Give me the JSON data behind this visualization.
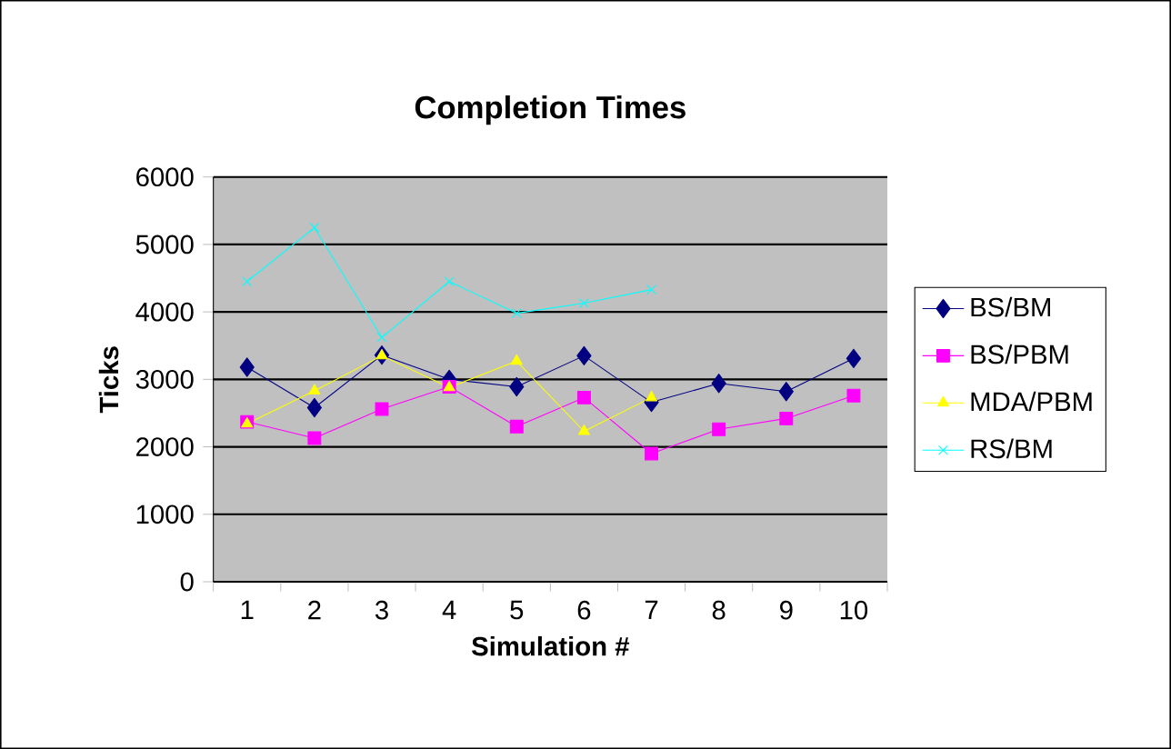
{
  "chart_data": {
    "type": "line",
    "title": "Completion Times",
    "xlabel": "Simulation #",
    "ylabel": "Ticks",
    "categories": [
      "1",
      "2",
      "3",
      "4",
      "5",
      "6",
      "7",
      "8",
      "9",
      "10"
    ],
    "series": [
      {
        "name": "BS/BM",
        "color": "#000080",
        "marker": "diamond",
        "values": [
          3180,
          2580,
          3360,
          3000,
          2890,
          3350,
          2660,
          2940,
          2820,
          3310
        ]
      },
      {
        "name": "BS/PBM",
        "color": "#ff00ff",
        "marker": "square",
        "values": [
          2370,
          2130,
          2560,
          2890,
          2300,
          2730,
          1900,
          2260,
          2420,
          2760
        ]
      },
      {
        "name": "MDA/PBM",
        "color": "#ffff00",
        "marker": "triangle",
        "values": [
          2340,
          2830,
          3350,
          2880,
          3270,
          2230,
          2730,
          null,
          null,
          null
        ]
      },
      {
        "name": "RS/BM",
        "color": "#00ffff",
        "marker": "cross",
        "values": [
          4450,
          5250,
          3620,
          4450,
          3980,
          4130,
          4330,
          null,
          null,
          null
        ]
      }
    ],
    "ylim": [
      0,
      6000
    ],
    "yticks": [
      0,
      1000,
      2000,
      3000,
      4000,
      5000,
      6000
    ],
    "grid": "y",
    "legend": "right"
  }
}
